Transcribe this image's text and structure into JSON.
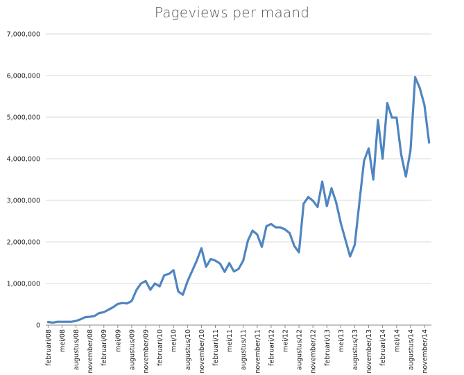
{
  "chart_data": {
    "type": "line",
    "title": "Pageviews per maand",
    "xlabel": "",
    "ylabel": "",
    "ylim": [
      0,
      7000000
    ],
    "y_ticks": [
      "0",
      "1,000,000",
      "2,000,000",
      "3,000,000",
      "4,000,000",
      "5,000,000",
      "6,000,000",
      "7,000,000"
    ],
    "y_tick_values": [
      0,
      1000000,
      2000000,
      3000000,
      4000000,
      5000000,
      6000000,
      7000000
    ],
    "x_tick_labels": [
      "februari/08",
      "mei/08",
      "augustus/08",
      "november/08",
      "februari/09",
      "mei/09",
      "augustus/09",
      "november/09",
      "februari/10",
      "mei/10",
      "augustus/10",
      "november/10",
      "februari/11",
      "mei/11",
      "augustus/11",
      "november/11",
      "februari/12",
      "mei/12",
      "augustus/12",
      "november/12",
      "februari/13",
      "mei/13",
      "augustus/13",
      "november/13",
      "februari/14",
      "mei/14",
      "augustus/14",
      "november/14"
    ],
    "grid": "horizontal",
    "line_color": "#4f85c1",
    "series": [
      {
        "values": [
          75000,
          60000,
          80000,
          80000,
          80000,
          80000,
          100000,
          140000,
          190000,
          200000,
          220000,
          290000,
          310000,
          370000,
          430000,
          510000,
          530000,
          520000,
          580000,
          840000,
          1000000,
          1060000,
          850000,
          1000000,
          930000,
          1200000,
          1230000,
          1320000,
          810000,
          730000,
          1050000,
          1300000,
          1550000,
          1850000,
          1400000,
          1590000,
          1550000,
          1480000,
          1280000,
          1490000,
          1290000,
          1350000,
          1550000,
          2030000,
          2270000,
          2180000,
          1880000,
          2380000,
          2430000,
          2350000,
          2350000,
          2300000,
          2210000,
          1900000,
          1750000,
          2920000,
          3080000,
          2990000,
          2840000,
          3450000,
          2860000,
          3290000,
          2950000,
          2450000,
          2050000,
          1650000,
          1930000,
          2950000,
          3950000,
          4250000,
          3500000,
          4930000,
          4000000,
          5340000,
          4990000,
          4990000,
          4100000,
          3570000,
          4200000,
          5960000,
          5700000,
          5290000,
          4390000
        ]
      }
    ]
  }
}
